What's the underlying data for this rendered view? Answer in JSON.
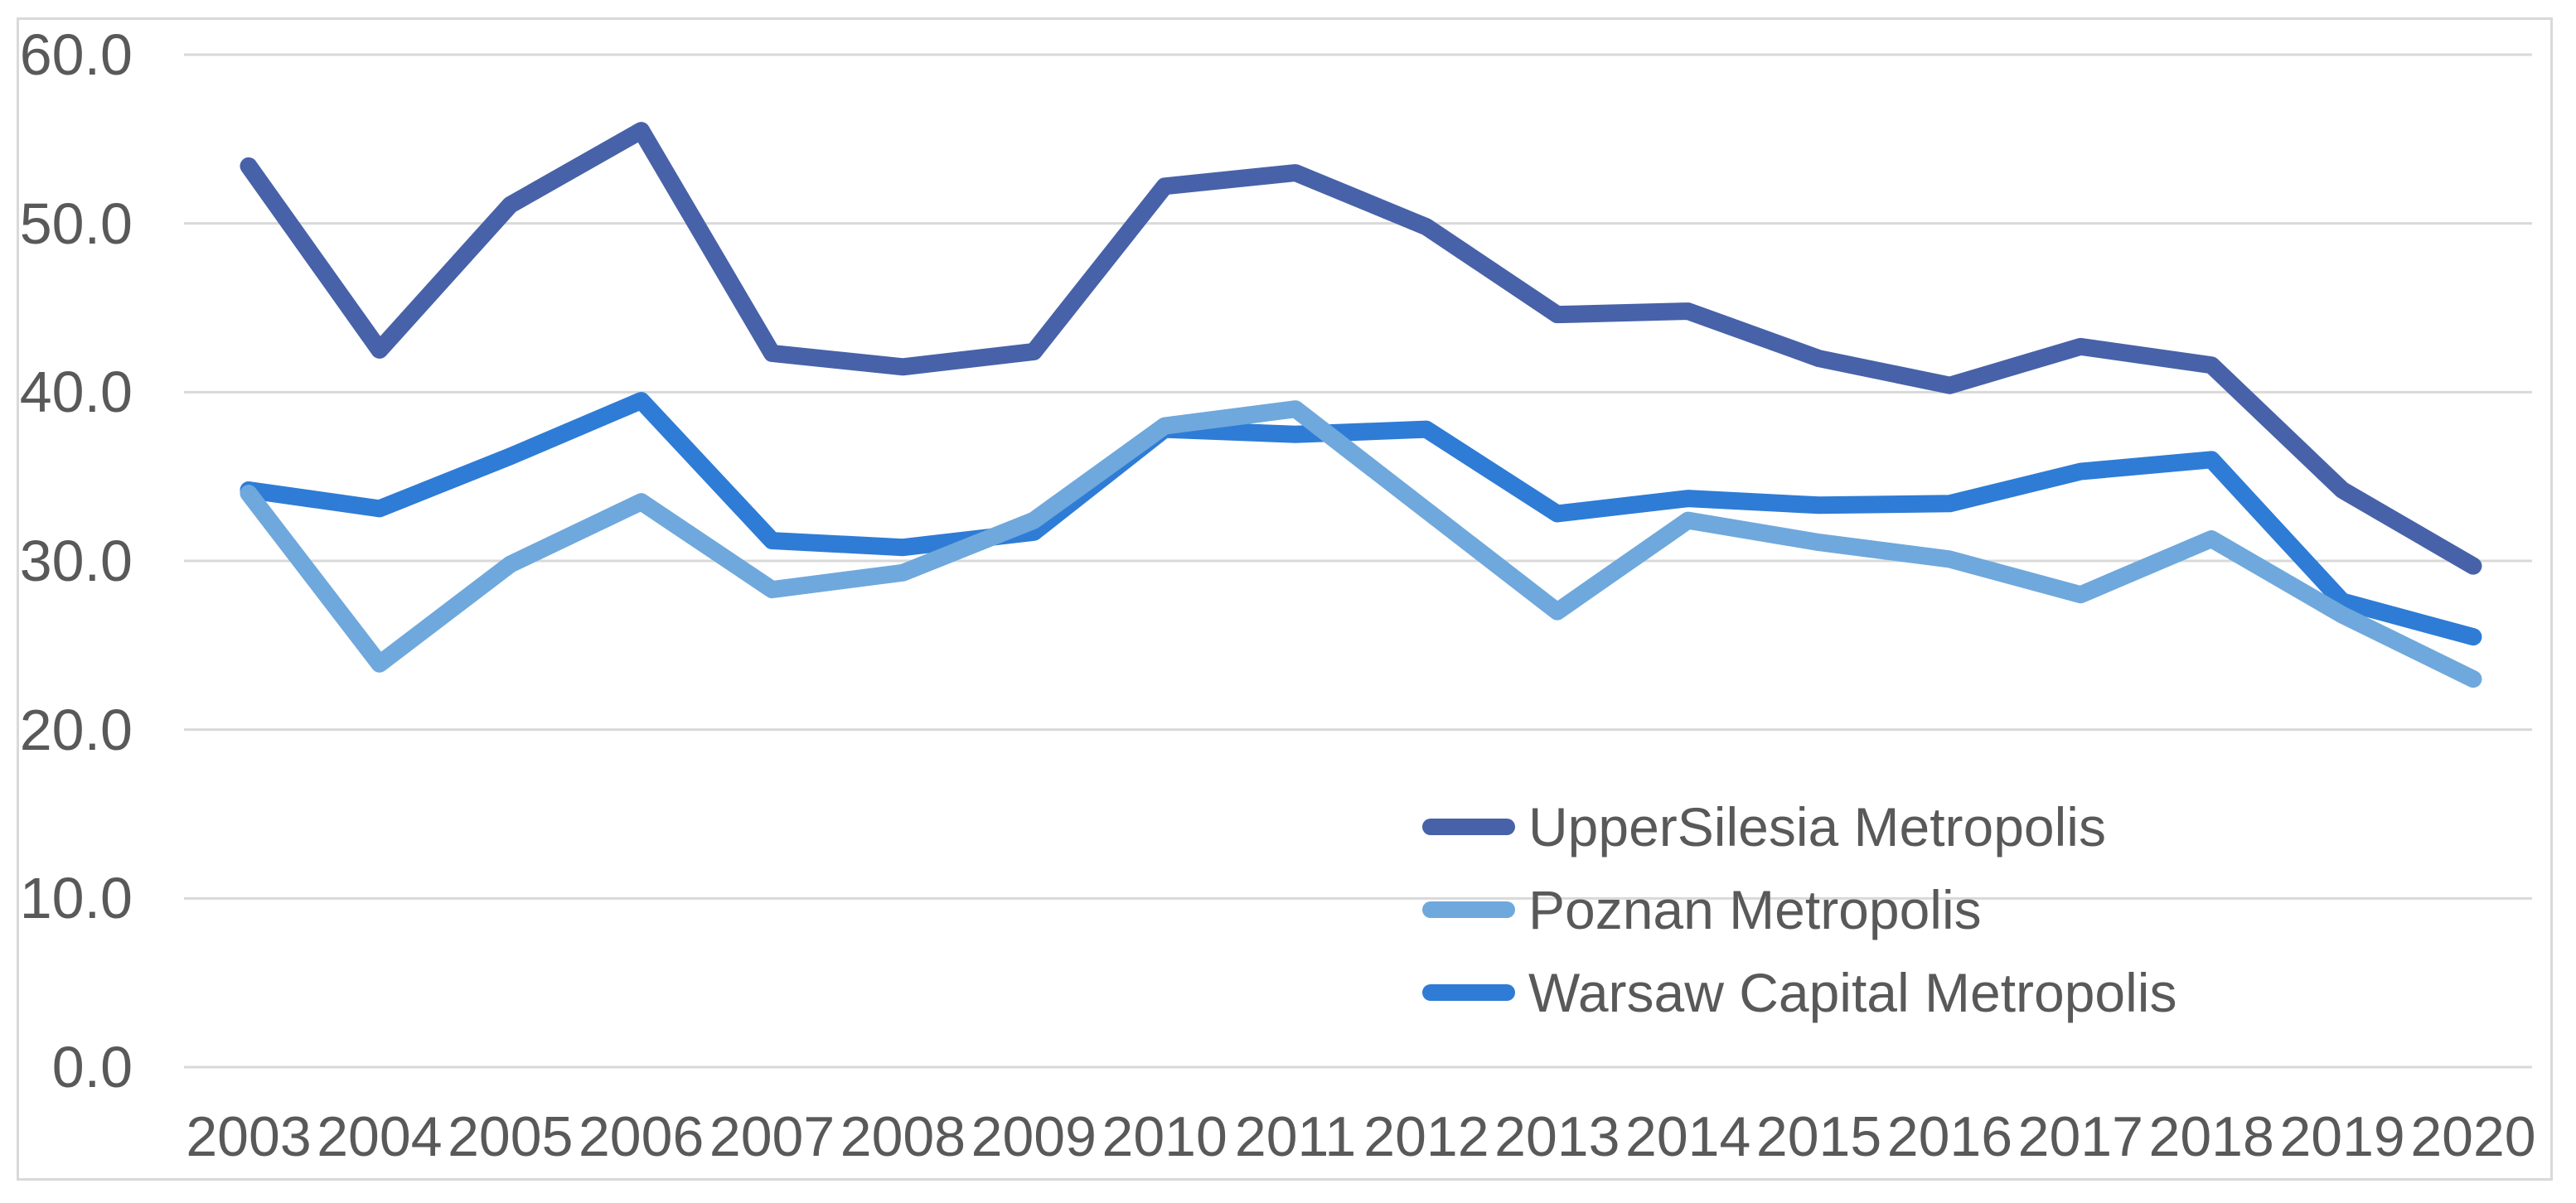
{
  "chart_data": {
    "type": "line",
    "title": "",
    "xlabel": "",
    "ylabel": "",
    "categories": [
      "2003",
      "2004",
      "2005",
      "2006",
      "2007",
      "2008",
      "2009",
      "2010",
      "2011",
      "2012",
      "2013",
      "2014",
      "2015",
      "2016",
      "2017",
      "2018",
      "2019",
      "2020"
    ],
    "series": [
      {
        "name": "UpperSilesia Metropolis",
        "color": "#4762A9",
        "values": [
          53.4,
          42.5,
          51.1,
          55.5,
          42.3,
          41.5,
          42.4,
          52.2,
          53.0,
          49.8,
          44.6,
          44.8,
          42.0,
          40.4,
          42.7,
          41.6,
          34.2,
          29.7
        ]
      },
      {
        "name": "Poznan Metropolis",
        "color": "#6FA8DC",
        "values": [
          34.0,
          23.9,
          29.8,
          33.5,
          28.3,
          29.3,
          32.4,
          38.0,
          39.0,
          33.0,
          27.0,
          32.4,
          31.1,
          30.1,
          28.0,
          31.3,
          26.8,
          23.0
        ]
      },
      {
        "name": "Warsaw Capital Metropolis",
        "color": "#2E7CD6",
        "values": [
          34.2,
          33.1,
          36.2,
          39.5,
          31.2,
          30.8,
          31.7,
          37.8,
          37.5,
          37.8,
          32.8,
          33.7,
          33.3,
          33.4,
          35.3,
          36.0,
          27.6,
          25.5
        ]
      }
    ],
    "ylim": [
      0,
      60
    ],
    "ytick_step": 10,
    "ytick_labels": [
      "60.0",
      "50.0",
      "40.0",
      "30.0",
      "20.0",
      "10.0",
      "0.0"
    ],
    "grid": true,
    "legend_position": "inside-bottom-right",
    "colors": {
      "grid": "#D9D9D9",
      "frame_border": "#D9D9D9",
      "axis_text": "#595959",
      "background": "#FFFFFF"
    }
  }
}
